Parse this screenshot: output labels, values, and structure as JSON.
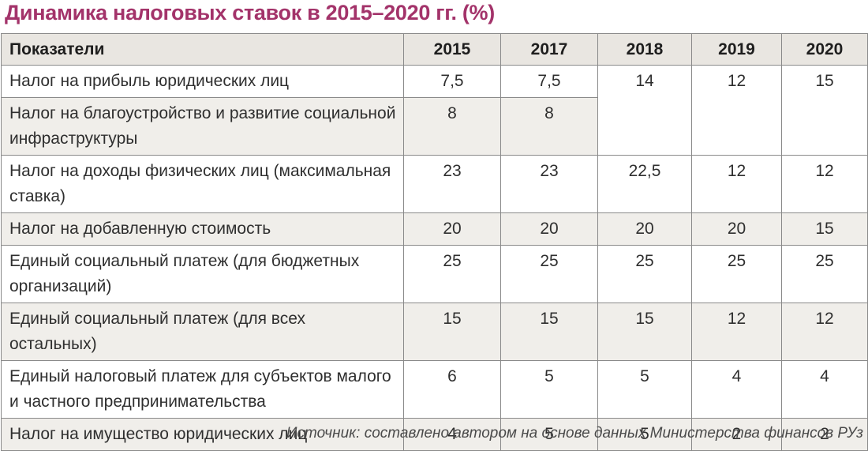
{
  "title": "Динамика налоговых ставок в 2015–2020 гг. (%)",
  "table": {
    "header": {
      "label": "Показатели",
      "years": [
        "2015",
        "2017",
        "2018",
        "2019",
        "2020"
      ]
    },
    "rows": [
      {
        "label": "Налог на прибыль юридических лиц",
        "values": [
          "7,5",
          "7,5",
          "14",
          "12",
          "15"
        ]
      },
      {
        "label": "Налог на благоустройство и развитие социальной инфраструктуры",
        "values": [
          "8",
          "8"
        ]
      },
      {
        "label": "Налог на доходы физических лиц (максимальная ставка)",
        "values": [
          "23",
          "23",
          "22,5",
          "12",
          "12"
        ]
      },
      {
        "label": "Налог на добавленную стоимость",
        "values": [
          "20",
          "20",
          "20",
          "20",
          "15"
        ]
      },
      {
        "label": "Единый социальный платеж (для бюджетных организаций)",
        "values": [
          "25",
          "25",
          "25",
          "25",
          "25"
        ]
      },
      {
        "label": "Единый социальный платеж (для всех остальных)",
        "values": [
          "15",
          "15",
          "15",
          "12",
          "12"
        ]
      },
      {
        "label": "Единый налоговый платеж для субъектов малого и частного предпринимательства",
        "values": [
          "6",
          "5",
          "5",
          "4",
          "4"
        ]
      },
      {
        "label": "Налог на имущество юридических лиц",
        "values": [
          "4",
          "5",
          "5",
          "2",
          "2"
        ]
      }
    ]
  },
  "source": "Источник: составлено автором на основе данных Министерства финансов РУз",
  "colors": {
    "title": "#a3336a",
    "header_bg": "#e9e6e1",
    "row_shade": "#f0eeea",
    "border": "#8a8a8a"
  }
}
